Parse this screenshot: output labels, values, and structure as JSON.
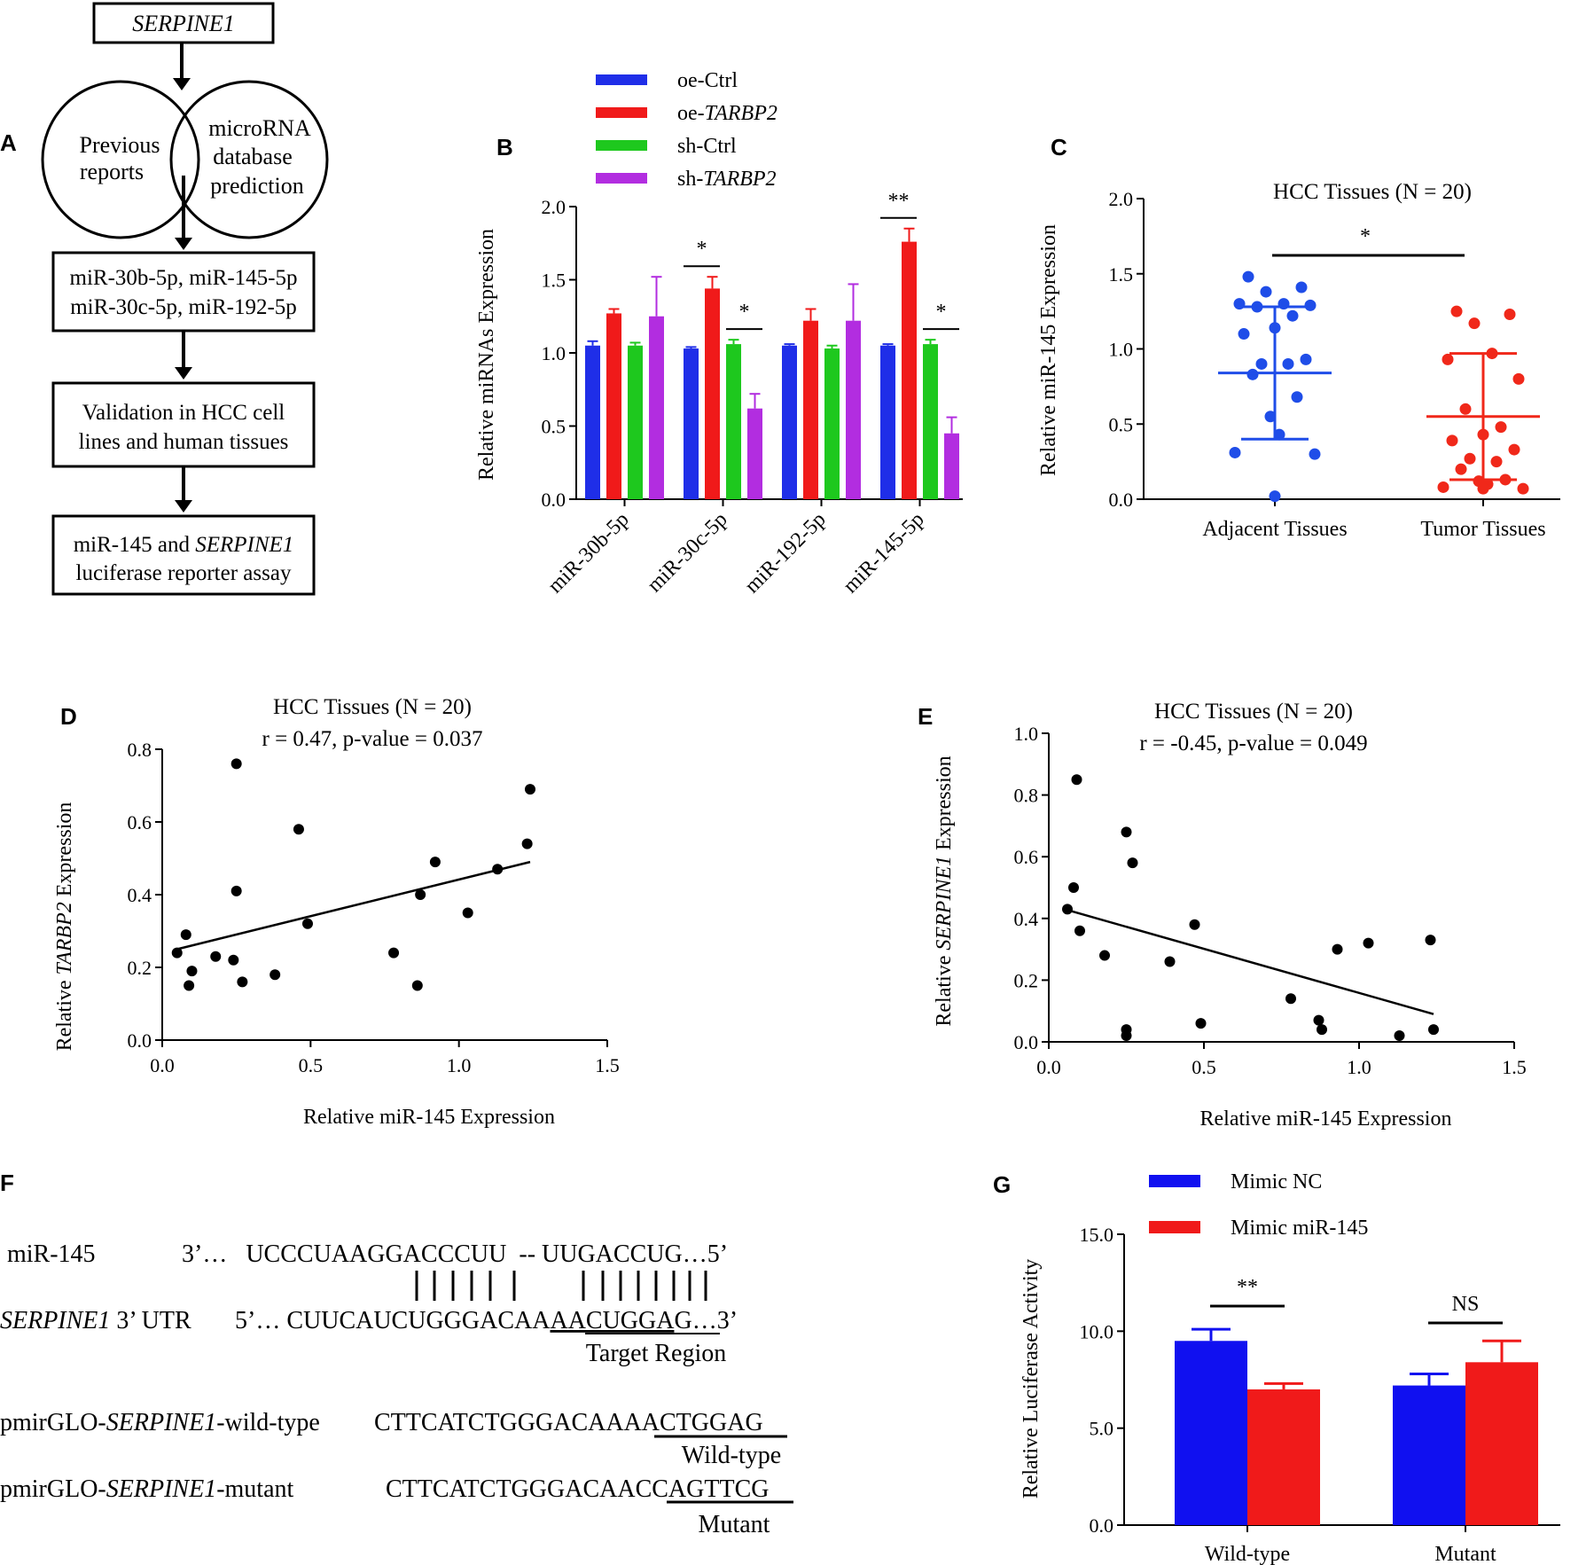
{
  "panels": {
    "A": {
      "label": "A",
      "gene_box": "SERPINE1",
      "circle_left": [
        "Previous",
        "reports"
      ],
      "circle_right": [
        "microRNA",
        "database",
        "prediction"
      ],
      "mirna_box": [
        "miR-30b-5p, miR-145-5p",
        "miR-30c-5p, miR-192-5p"
      ],
      "validation_box": [
        "Validation in HCC cell",
        "lines and human tissues"
      ],
      "assay_box": {
        "pre": "miR-145 and ",
        "gene": "SERPINE1",
        "line2": "luciferase reporter assay"
      }
    },
    "B": {
      "label": "B"
    },
    "C": {
      "label": "C"
    },
    "D": {
      "label": "D"
    },
    "E": {
      "label": "E"
    },
    "F": {
      "label": "F",
      "mir_label": "miR-145",
      "mir_seq": "3’…   UCCCUAAGGACCCUU  -- UUGACCUG…5’",
      "pairing": "|||||||    ||||||||",
      "utr_gene": "SERPINE1",
      "utr_suffix": " 3’ UTR",
      "utr_seq_pre": "5’… CUUCAUCUGGGACAA",
      "utr_seq_target": "AACUGGA",
      "utr_seq_post": "G…3’",
      "target_caption": "Target Region",
      "wt_pre": "pmirGLO-",
      "wt_gene": "SERPINE1",
      "wt_post": "-wild-type",
      "wt_seq_pre": "CTTCATCTGGGACAA",
      "wt_seq_site": "AACTGGA",
      "wt_seq_post": "G",
      "wt_caption": "Wild-type",
      "mut_pre": "pmirGLO-",
      "mut_gene": "SERPINE1",
      "mut_post": "-mutant",
      "mut_seq_pre": "CTTCATCTGGGACAA",
      "mut_seq_site": "CCAGTTC",
      "mut_seq_post": "G",
      "mut_caption": "Mutant"
    },
    "G": {
      "label": "G"
    }
  },
  "chart_data": [
    {
      "id": "B",
      "type": "bar",
      "title": "",
      "ylabel": "Relative miRNAs Expression",
      "ylim": [
        0,
        2.0
      ],
      "yticks": [
        "0.0",
        "0.5",
        "1.0",
        "1.5",
        "2.0"
      ],
      "categories": [
        "miR-30b-5p",
        "miR-30c-5p",
        "miR-192-5p",
        "miR-145-5p"
      ],
      "series": [
        {
          "name": "oe-Ctrl",
          "prefix": "oe-",
          "italic": "Ctrl",
          "italic_flag": false,
          "color": "#1f2ee8",
          "values": [
            1.05,
            1.03,
            1.05,
            1.05
          ],
          "errors": [
            0.03,
            0.01,
            0.01,
            0.01
          ]
        },
        {
          "name": "oe-TARBP2",
          "prefix": "oe-",
          "italic": "TARBP2",
          "italic_flag": true,
          "color": "#f01a1a",
          "values": [
            1.27,
            1.44,
            1.22,
            1.76
          ],
          "errors": [
            0.03,
            0.08,
            0.08,
            0.09
          ]
        },
        {
          "name": "sh-Ctrl",
          "prefix": "sh-",
          "italic": "Ctrl",
          "italic_flag": false,
          "color": "#1ec81e",
          "values": [
            1.05,
            1.06,
            1.03,
            1.06
          ],
          "errors": [
            0.02,
            0.03,
            0.02,
            0.03
          ]
        },
        {
          "name": "sh-TARBP2",
          "prefix": "sh-",
          "italic": "TARBP2",
          "italic_flag": true,
          "color": "#b22de0",
          "values": [
            1.25,
            0.62,
            1.22,
            0.45
          ],
          "errors": [
            0.27,
            0.1,
            0.25,
            0.11
          ]
        }
      ],
      "significance": [
        "*",
        "*",
        "**",
        "*"
      ]
    },
    {
      "id": "C",
      "type": "scatter",
      "title": "HCC Tissues (N = 20)",
      "ylabel": "Relative miR-145 Expression",
      "ylim": [
        0,
        2.0
      ],
      "yticks": [
        "0.0",
        "0.5",
        "1.0",
        "1.5",
        "2.0"
      ],
      "categories": [
        "Adjacent Tissues",
        "Tumor Tissues"
      ],
      "series": [
        {
          "name": "Adjacent Tissues",
          "color": "#1f4de8",
          "mean": 0.84,
          "sd_low": 0.4,
          "sd_high": 1.28,
          "values": [
            1.48,
            1.41,
            1.38,
            1.3,
            1.3,
            1.29,
            1.28,
            1.22,
            1.14,
            1.1,
            0.93,
            0.9,
            0.9,
            0.83,
            0.68,
            0.55,
            0.43,
            0.31,
            0.3,
            0.02
          ]
        },
        {
          "name": "Tumor Tissues",
          "color": "#f0281a",
          "mean": 0.55,
          "sd_low": 0.13,
          "sd_high": 0.97,
          "values": [
            1.25,
            1.23,
            1.17,
            0.97,
            0.93,
            0.8,
            0.6,
            0.48,
            0.43,
            0.39,
            0.33,
            0.27,
            0.25,
            0.2,
            0.13,
            0.12,
            0.1,
            0.08,
            0.07,
            0.07
          ]
        }
      ],
      "significance": "*"
    },
    {
      "id": "D",
      "type": "scatter",
      "title": "HCC Tissues (N = 20)",
      "subtitle": "r = 0.47, p-value = 0.037",
      "xlabel": "Relative miR-145 Expression",
      "ylabel_pre": "Relative ",
      "ylabel_gene": "TARBP2",
      "ylabel_post": " Expression",
      "xlim": [
        0,
        1.5
      ],
      "ylim": [
        0,
        0.8
      ],
      "xticks": [
        "0.0",
        "0.5",
        "1.0",
        "1.5"
      ],
      "yticks": [
        "0.0",
        "0.2",
        "0.4",
        "0.6",
        "0.8"
      ],
      "x": [
        0.25,
        1.24,
        0.46,
        1.23,
        0.92,
        0.25,
        1.13,
        0.87,
        0.49,
        1.03,
        0.08,
        0.05,
        0.24,
        0.78,
        0.18,
        0.1,
        0.38,
        0.27,
        0.09,
        0.86
      ],
      "y": [
        0.76,
        0.69,
        0.58,
        0.54,
        0.49,
        0.41,
        0.47,
        0.4,
        0.32,
        0.35,
        0.29,
        0.24,
        0.22,
        0.24,
        0.23,
        0.19,
        0.18,
        0.16,
        0.15,
        0.15
      ],
      "fit": {
        "x": [
          0.05,
          1.24
        ],
        "y": [
          0.25,
          0.49
        ]
      }
    },
    {
      "id": "E",
      "type": "scatter",
      "title": "HCC Tissues (N = 20)",
      "subtitle": "r = -0.45,  p-value = 0.049",
      "xlabel": "Relative miR-145 Expression",
      "ylabel_pre": "Relative ",
      "ylabel_gene": "SERPINE1",
      "ylabel_post": " Expression",
      "xlim": [
        0,
        1.5
      ],
      "ylim": [
        0,
        1.0
      ],
      "xticks": [
        "0.0",
        "0.5",
        "1.0",
        "1.5"
      ],
      "yticks": [
        "0.0",
        "0.2",
        "0.4",
        "0.6",
        "0.8",
        "1.0"
      ],
      "x": [
        0.09,
        0.25,
        0.27,
        0.08,
        0.06,
        0.47,
        0.1,
        0.18,
        0.39,
        1.23,
        1.03,
        0.93,
        0.78,
        0.87,
        0.49,
        0.25,
        0.25,
        0.88,
        1.13,
        1.24
      ],
      "y": [
        0.85,
        0.68,
        0.58,
        0.5,
        0.43,
        0.38,
        0.36,
        0.28,
        0.26,
        0.33,
        0.32,
        0.3,
        0.14,
        0.07,
        0.06,
        0.04,
        0.02,
        0.04,
        0.02,
        0.04
      ],
      "fit": {
        "x": [
          0.05,
          1.24
        ],
        "y": [
          0.43,
          0.09
        ]
      }
    },
    {
      "id": "G",
      "type": "bar",
      "ylabel": "Relative Luciferase Activity",
      "ylim": [
        0,
        15.0
      ],
      "yticks": [
        "0.0",
        "5.0",
        "10.0",
        "15.0"
      ],
      "categories": [
        "Wild-type",
        "Mutant"
      ],
      "series": [
        {
          "name": "Mimic NC",
          "color": "#1010f0",
          "values": [
            9.5,
            7.2
          ],
          "errors": [
            0.6,
            0.6
          ]
        },
        {
          "name": "Mimic miR-145",
          "color": "#f01a1a",
          "values": [
            7.0,
            8.4
          ],
          "errors": [
            0.3,
            1.1
          ]
        }
      ],
      "significance": [
        "**",
        "NS"
      ]
    }
  ]
}
